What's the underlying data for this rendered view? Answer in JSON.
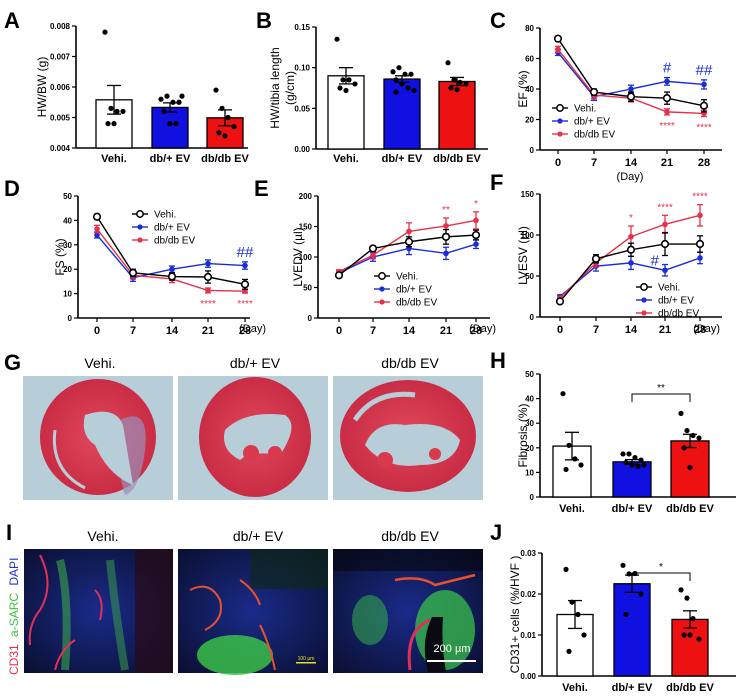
{
  "colors": {
    "vehi": "#ffffff",
    "dbplus": "#1010e0",
    "dbdb": "#ee1111",
    "line_vehi": "#000000",
    "line_dbplus": "#1a2cd8",
    "line_dbdb": "#e8314a",
    "he_bg": "#b9cfd9",
    "he_tissue": "#d8394d"
  },
  "groups": [
    "Vehi.",
    "db/+ EV",
    "db/db EV"
  ],
  "chart_data": [
    {
      "id": "A",
      "type": "bar",
      "panel_label": "A",
      "ylabel": "HW/BW (g)",
      "xlabel": "",
      "categories": [
        "Vehi.",
        "db/+ EV",
        "db/db EV"
      ],
      "ylim": [
        0.004,
        0.008
      ],
      "yticks": [
        0.004,
        0.005,
        0.006,
        0.007,
        0.008
      ],
      "ytick_labels": [
        "0.004",
        "0.005",
        "0.006",
        "0.007",
        "0.008"
      ],
      "values": [
        0.00558,
        0.00533,
        0.00499
      ],
      "sem": [
        0.00047,
        0.00015,
        0.00026
      ],
      "points": [
        [
          0.0078,
          0.0053,
          0.0052,
          0.0052,
          0.0048,
          0.0048
        ],
        [
          0.0056,
          0.0057,
          0.0055,
          0.0055,
          0.0052,
          0.0048,
          0.0048,
          0.0057
        ],
        [
          0.0059,
          0.0053,
          0.005,
          0.0047,
          0.0045,
          0.0044
        ]
      ],
      "annotations": []
    },
    {
      "id": "B",
      "type": "bar",
      "panel_label": "B",
      "ylabel": "HW/tibia length (g/cm)",
      "xlabel": "",
      "categories": [
        "Vehi.",
        "db/+ EV",
        "db/db EV"
      ],
      "ylim": [
        0.0,
        0.15
      ],
      "yticks": [
        0.0,
        0.05,
        0.1,
        0.15
      ],
      "ytick_labels": [
        "0.00",
        "0.05",
        "0.10",
        "0.15"
      ],
      "values": [
        0.09,
        0.086,
        0.083
      ],
      "sem": [
        0.01,
        0.004,
        0.005
      ],
      "points": [
        [
          0.135,
          0.085,
          0.085,
          0.08,
          0.075,
          0.072
        ],
        [
          0.095,
          0.1,
          0.092,
          0.092,
          0.085,
          0.08,
          0.075,
          0.072,
          0.07
        ],
        [
          0.106,
          0.085,
          0.082,
          0.08,
          0.075,
          0.073
        ]
      ],
      "annotations": []
    },
    {
      "id": "C",
      "type": "line",
      "panel_label": "C",
      "ylabel": "EF (%)",
      "xlabel": "(Day)",
      "x": [
        0,
        7,
        14,
        21,
        28
      ],
      "xtick_labels": [
        "0",
        "7",
        "14",
        "21",
        "28"
      ],
      "ylim": [
        0,
        80
      ],
      "yticks": [
        0,
        20,
        40,
        60,
        80
      ],
      "legend": [
        "Vehi.",
        "db/+ EV",
        "db/db EV"
      ],
      "legend_position": "bottom-left",
      "series": [
        {
          "name": "Vehi.",
          "values": [
            73,
            38,
            35,
            34,
            29
          ],
          "err": [
            1.5,
            2,
            3,
            4,
            4
          ]
        },
        {
          "name": "db/+ EV",
          "values": [
            64,
            35,
            40,
            45,
            43
          ],
          "err": [
            2,
            2.5,
            2.5,
            2.5,
            3
          ]
        },
        {
          "name": "db/db EV",
          "values": [
            66,
            36,
            34,
            25,
            24
          ],
          "err": [
            2,
            2.5,
            2.5,
            2,
            2
          ]
        }
      ],
      "annotations": [
        {
          "x": 21,
          "text": "#",
          "color": "blue",
          "position": "above"
        },
        {
          "x": 28,
          "text": "##",
          "color": "blue",
          "position": "above"
        },
        {
          "x": 21,
          "text": "****",
          "color": "red",
          "position": "below"
        },
        {
          "x": 28,
          "text": "****",
          "color": "red",
          "position": "below"
        }
      ]
    },
    {
      "id": "D",
      "type": "line",
      "panel_label": "D",
      "ylabel": "FS (%)",
      "xlabel": "(Day)",
      "x": [
        0,
        7,
        14,
        21,
        28
      ],
      "xtick_labels": [
        "0",
        "7",
        "14",
        "21",
        "28"
      ],
      "ylim": [
        0,
        50
      ],
      "yticks": [
        0,
        10,
        20,
        30,
        40,
        50
      ],
      "legend": [
        "Vehi.",
        "db/+ EV",
        "db/db EV"
      ],
      "legend_position": "top-center",
      "series": [
        {
          "name": "Vehi.",
          "values": [
            41.5,
            18.5,
            17,
            16.8,
            13.8
          ],
          "err": [
            1,
            1.5,
            1.5,
            2.5,
            2
          ]
        },
        {
          "name": "db/+ EV",
          "values": [
            34,
            16.5,
            20,
            22.3,
            21.5
          ],
          "err": [
            1.2,
            1.5,
            1.3,
            1.5,
            1.5
          ]
        },
        {
          "name": "db/db EV",
          "values": [
            36.5,
            17.5,
            16,
            11.3,
            11
          ],
          "err": [
            1.5,
            1.5,
            1.5,
            1,
            0.8
          ]
        }
      ],
      "annotations": [
        {
          "x": 28,
          "text": "##",
          "color": "blue",
          "position": "above"
        },
        {
          "x": 21,
          "text": "****",
          "color": "red",
          "position": "below"
        },
        {
          "x": 28,
          "text": "****",
          "color": "red",
          "position": "below"
        }
      ]
    },
    {
      "id": "E",
      "type": "line",
      "panel_label": "E",
      "ylabel": "LVEDV (µl)",
      "xlabel": "(Day)",
      "x": [
        0,
        7,
        14,
        21,
        28
      ],
      "xtick_labels": [
        "0",
        "7",
        "14",
        "21",
        "28"
      ],
      "ylim": [
        0,
        200
      ],
      "yticks": [
        0,
        50,
        100,
        150,
        200
      ],
      "legend": [
        "Vehi.",
        "db/+ EV",
        "db/db EV"
      ],
      "legend_position": "bottom-center",
      "series": [
        {
          "name": "Vehi.",
          "values": [
            70,
            114,
            125,
            133,
            136
          ],
          "err": [
            3,
            4,
            8,
            12,
            8
          ]
        },
        {
          "name": "db/+ EV",
          "values": [
            74,
            100,
            114,
            106,
            121
          ],
          "err": [
            3,
            7,
            10,
            10,
            7
          ]
        },
        {
          "name": "db/db EV",
          "values": [
            76,
            103,
            142,
            151,
            160
          ],
          "err": [
            3,
            6,
            14,
            13,
            14
          ]
        }
      ],
      "annotations": [
        {
          "x": 21,
          "text": "**",
          "color": "red",
          "position": "above"
        },
        {
          "x": 28,
          "text": "*",
          "color": "red",
          "position": "above"
        }
      ]
    },
    {
      "id": "F",
      "type": "line",
      "panel_label": "F",
      "ylabel": "LVESV (µl)",
      "xlabel": "(Day)",
      "x": [
        0,
        7,
        14,
        21,
        28
      ],
      "xtick_labels": [
        "0",
        "7",
        "14",
        "21",
        "28"
      ],
      "ylim": [
        0,
        150
      ],
      "yticks": [
        0,
        50,
        100,
        150
      ],
      "legend": [
        "Vehi.",
        "db/+ EV",
        "db/db EV"
      ],
      "legend_position": "bottom-right",
      "series": [
        {
          "name": "Vehi.",
          "values": [
            19,
            71,
            82,
            89,
            89
          ],
          "err": [
            2,
            5,
            8,
            14,
            10
          ]
        },
        {
          "name": "db/+ EV",
          "values": [
            25,
            62,
            66,
            57,
            72
          ],
          "err": [
            2,
            6,
            8,
            7,
            7
          ]
        },
        {
          "name": "db/db EV",
          "values": [
            23,
            66,
            98,
            113,
            124
          ],
          "err": [
            2,
            5,
            13,
            11,
            13
          ]
        }
      ],
      "annotations": [
        {
          "x": 14,
          "text": "*",
          "color": "red",
          "position": "above"
        },
        {
          "x": 21,
          "text": "****",
          "color": "red",
          "position": "above"
        },
        {
          "x": 28,
          "text": "****",
          "color": "red",
          "position": "above"
        },
        {
          "x": 21,
          "text": "#",
          "color": "blue",
          "position": "left"
        }
      ]
    },
    {
      "id": "H",
      "type": "bar",
      "panel_label": "H",
      "ylabel": "Fibrosis (%)",
      "xlabel": "",
      "categories": [
        "Vehi.",
        "db/+ EV",
        "db/db EV"
      ],
      "ylim": [
        0,
        50
      ],
      "yticks": [
        0,
        10,
        20,
        30,
        40,
        50
      ],
      "ytick_labels": [
        "0",
        "10",
        "20",
        "30",
        "40",
        "50"
      ],
      "values": [
        20.7,
        14.3,
        22.8
      ],
      "sem": [
        5.6,
        0.9,
        2.7
      ],
      "points": [
        [
          42,
          21,
          15.5,
          13,
          11.2
        ],
        [
          17.5,
          17.5,
          16,
          15,
          14,
          13,
          12.5,
          13
        ],
        [
          34,
          27,
          25,
          24,
          20,
          12
        ]
      ],
      "annotations": [
        {
          "between": [
            1,
            2
          ],
          "text": "**"
        }
      ]
    },
    {
      "id": "J",
      "type": "bar",
      "panel_label": "J",
      "ylabel": "CD31+ cells (%/HVF )",
      "xlabel": "",
      "categories": [
        "Vehi.",
        "db/+ EV",
        "db/db EV"
      ],
      "ylim": [
        0.0,
        0.03
      ],
      "yticks": [
        0.0,
        0.01,
        0.02,
        0.03
      ],
      "ytick_labels": [
        "0.00",
        "0.01",
        "0.02",
        "0.03"
      ],
      "values": [
        0.015,
        0.0225,
        0.0138
      ],
      "sem": [
        0.0034,
        0.0021,
        0.0021
      ],
      "points": [
        [
          0.026,
          0.018,
          0.015,
          0.01,
          0.006
        ],
        [
          0.027,
          0.0249,
          0.025,
          0.02,
          0.015
        ],
        [
          0.021,
          0.019,
          0.014,
          0.009,
          0.01,
          0.01
        ]
      ],
      "annotations": [
        {
          "between": [
            1,
            2
          ],
          "text": "*"
        }
      ]
    }
  ],
  "panel_G": {
    "label": "G",
    "titles": [
      "Vehi.",
      "db/+ EV",
      "db/db EV"
    ]
  },
  "panel_I": {
    "label": "I",
    "titles": [
      "Vehi.",
      "db/+ EV",
      "db/db EV"
    ],
    "stain_label": {
      "cd31": "CD31",
      "sarc": "a-SARC",
      "dapi": "DAPI"
    },
    "scale_bar_small": "100 µm",
    "scale_bar_large": "200 µm"
  }
}
